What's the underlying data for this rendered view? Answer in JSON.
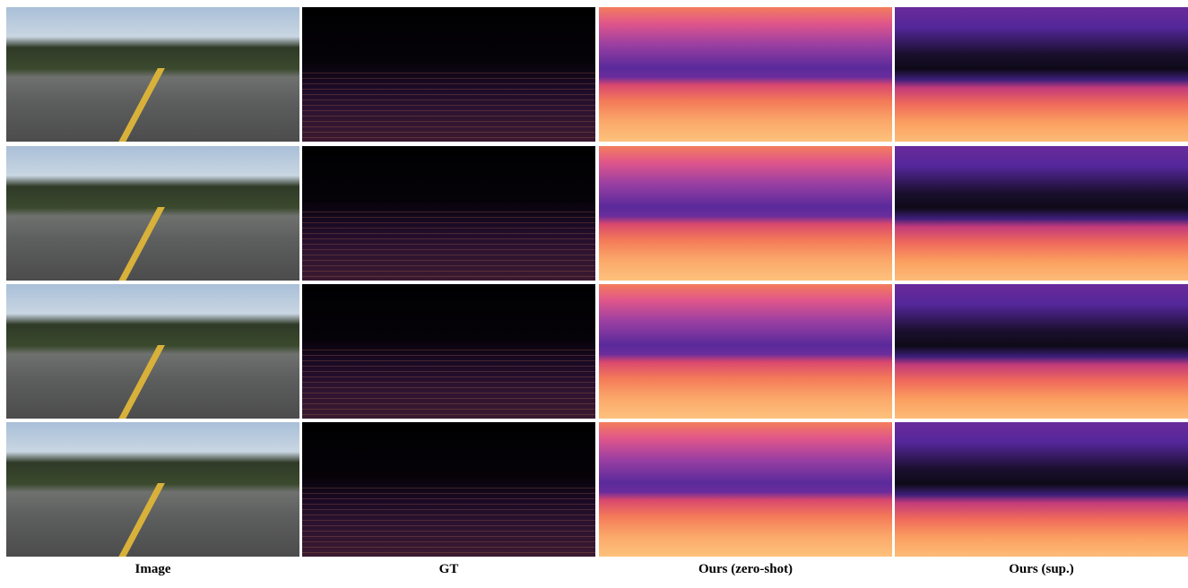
{
  "columns": [
    "Image",
    "GT",
    "Ours (zero-shot)",
    "Ours (sup.)"
  ]
}
